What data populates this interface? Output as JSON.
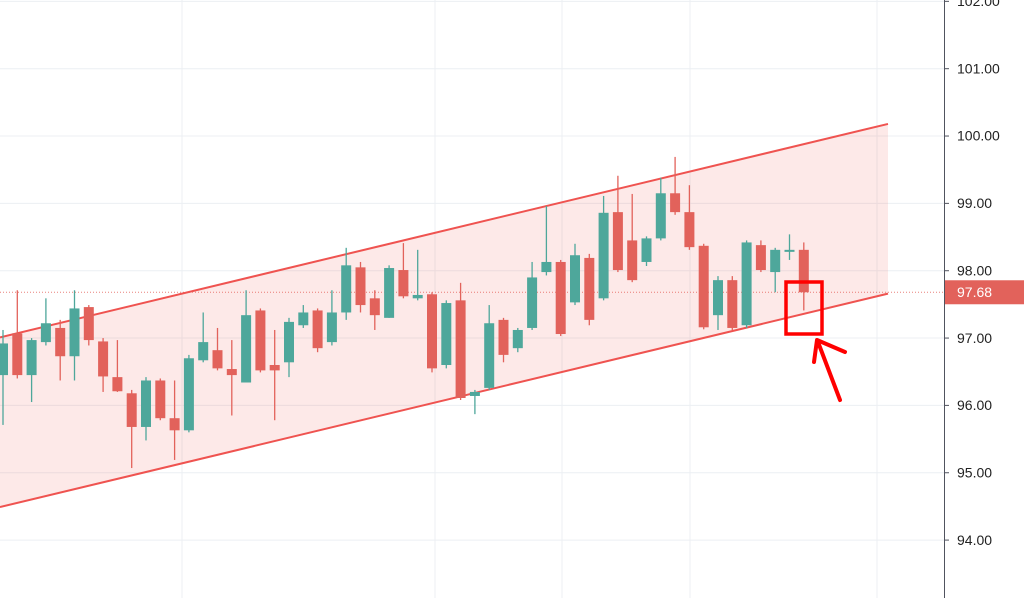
{
  "chart_data": {
    "type": "candlestick",
    "up_color": "#4ea79b",
    "down_color": "#e2625b",
    "channel_color": "#ef5350",
    "open": [
      96.45,
      97.07,
      96.45,
      96.94,
      97.15,
      96.73,
      97.46,
      96.95,
      96.42,
      96.18,
      95.68,
      96.37,
      95.81,
      95.63,
      96.67,
      96.82,
      96.54,
      96.34,
      97.41,
      96.6,
      96.64,
      97.19,
      97.41,
      96.94,
      97.38,
      98.05,
      97.59,
      97.3,
      98.01,
      97.59,
      97.65,
      96.6,
      97.56,
      96.14,
      96.26,
      97.27,
      96.85,
      97.15,
      97.98,
      98.13,
      97.53,
      98.19,
      97.59,
      98.87,
      98.45,
      98.13,
      98.48,
      99.15,
      98.87,
      98.37,
      97.34,
      97.86,
      97.19,
      98.38,
      97.98,
      98.28,
      98.31
    ],
    "high": [
      97.12,
      97.71,
      97.0,
      97.59,
      97.27,
      97.71,
      97.49,
      97.0,
      96.97,
      96.23,
      96.42,
      96.4,
      96.37,
      96.75,
      97.38,
      97.15,
      96.97,
      97.71,
      97.44,
      97.12,
      97.3,
      97.49,
      97.44,
      97.71,
      98.34,
      98.13,
      97.71,
      98.08,
      98.41,
      98.31,
      97.68,
      97.56,
      97.82,
      96.23,
      97.49,
      97.3,
      97.15,
      98.13,
      98.96,
      98.16,
      98.4,
      98.25,
      99.11,
      99.41,
      99.14,
      98.51,
      99.38,
      99.69,
      99.27,
      98.4,
      97.92,
      97.92,
      98.45,
      98.45,
      98.34,
      98.54,
      98.42
    ],
    "low": [
      95.71,
      96.4,
      96.05,
      96.89,
      96.37,
      96.37,
      96.89,
      96.2,
      96.2,
      95.07,
      95.48,
      95.78,
      95.19,
      95.6,
      96.64,
      96.52,
      95.85,
      96.34,
      96.49,
      95.78,
      96.42,
      97.15,
      96.79,
      96.89,
      97.27,
      97.38,
      97.12,
      97.3,
      97.59,
      97.56,
      96.49,
      96.55,
      96.08,
      95.87,
      96.23,
      96.64,
      96.79,
      97.12,
      97.93,
      97.03,
      97.49,
      97.19,
      97.56,
      97.98,
      97.83,
      98.07,
      98.45,
      98.83,
      98.31,
      97.13,
      97.12,
      97.12,
      97.15,
      97.98,
      97.68,
      98.16,
      97.41
    ],
    "close": [
      96.92,
      96.45,
      96.97,
      97.22,
      96.73,
      97.44,
      96.97,
      96.43,
      96.21,
      95.68,
      96.37,
      95.81,
      95.63,
      96.7,
      96.94,
      96.55,
      96.45,
      97.34,
      96.52,
      96.52,
      97.24,
      97.38,
      96.85,
      97.38,
      98.08,
      97.49,
      97.34,
      98.04,
      97.62,
      97.64,
      96.55,
      97.52,
      96.11,
      96.2,
      97.22,
      96.75,
      97.12,
      97.9,
      98.13,
      97.06,
      98.23,
      97.27,
      98.86,
      98.01,
      97.86,
      98.48,
      99.15,
      98.87,
      98.35,
      97.16,
      97.86,
      97.15,
      98.42,
      98.01,
      98.31,
      98.31,
      97.68
    ],
    "last_price": 97.68,
    "channel": {
      "upper": [
        97.01,
        100.18
      ],
      "lower": [
        94.49,
        97.66
      ]
    },
    "ylim": [
      93.14,
      102.02
    ],
    "yticks": [
      {
        "value": 94,
        "label": "94.00"
      },
      {
        "value": 95,
        "label": "95.00"
      },
      {
        "value": 96,
        "label": "96.00"
      },
      {
        "value": 97,
        "label": "97.00"
      },
      {
        "value": 98,
        "label": "98.00"
      },
      {
        "value": 99,
        "label": "99.00"
      },
      {
        "value": 100,
        "label": "100.00"
      },
      {
        "value": 101,
        "label": "101.00"
      },
      {
        "value": 102,
        "label": "102.00"
      }
    ],
    "grid": true
  }
}
